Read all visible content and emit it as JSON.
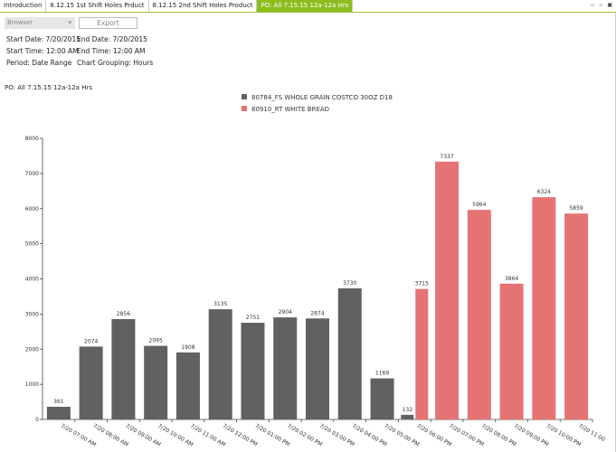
{
  "tabs": [
    {
      "label": "Introduction"
    },
    {
      "label": "8.12.15 1st Shift Holes Prduct"
    },
    {
      "label": "8.12.15 2nd Shift Holes Product"
    },
    {
      "label": "PO: All 7.15.15 12a-12a Hrs",
      "active": true
    }
  ],
  "toolbar": {
    "select_value": "Browser",
    "export_label": "Export"
  },
  "info": {
    "start_date": "Start Date: 7/20/2015",
    "end_date": "End Date: 7/20/2015",
    "start_time": "Start Time: 12:00 AM",
    "end_time": "End Time: 12:00 AM",
    "period": "Period: Date Range",
    "grouping": "Chart Grouping: Hours"
  },
  "po_label": "PO: All 7.15.15 12a-12a Hrs",
  "colors": {
    "accent": "#8cbd1e",
    "series1": "#616161",
    "series2": "#e57373"
  },
  "chart_data": {
    "type": "bar",
    "ylim": [
      0,
      8000
    ],
    "yticks": [
      "0",
      "1000",
      "2000",
      "3000",
      "4000",
      "5000",
      "6000",
      "7000",
      "8000"
    ],
    "legend": "top-center",
    "categories": [
      "7/20 07:00 AM",
      "7/20 08:00 AM",
      "7/20 09:00 AM",
      "7/20 10:00 AM",
      "7/20 11:00 AM",
      "7/20 12:00 PM",
      "7/20 01:00 PM",
      "7/20 02:00 PM",
      "7/20 03:00 PM",
      "7/20 04:00 PM",
      "7/20 05:00 PM",
      "7/20 06:00 PM",
      "7/20 07:00 PM",
      "7/20 08:00 PM",
      "7/20 09:00 PM",
      "7/20 10:00 PM",
      "7/20 11:00"
    ],
    "series": [
      {
        "name": "80784_FS WHOLE GRAIN COSTCO 30OZ D18",
        "values": [
          361,
          2074,
          2856,
          2095,
          1908,
          3135,
          2751,
          2904,
          2874,
          3730,
          1169,
          132,
          null,
          null,
          null,
          null,
          null
        ]
      },
      {
        "name": "80910_RT WHITE BREAD",
        "values": [
          null,
          null,
          null,
          null,
          null,
          null,
          null,
          null,
          null,
          null,
          null,
          3715,
          7337,
          5964,
          3864,
          6324,
          5859
        ]
      }
    ]
  }
}
